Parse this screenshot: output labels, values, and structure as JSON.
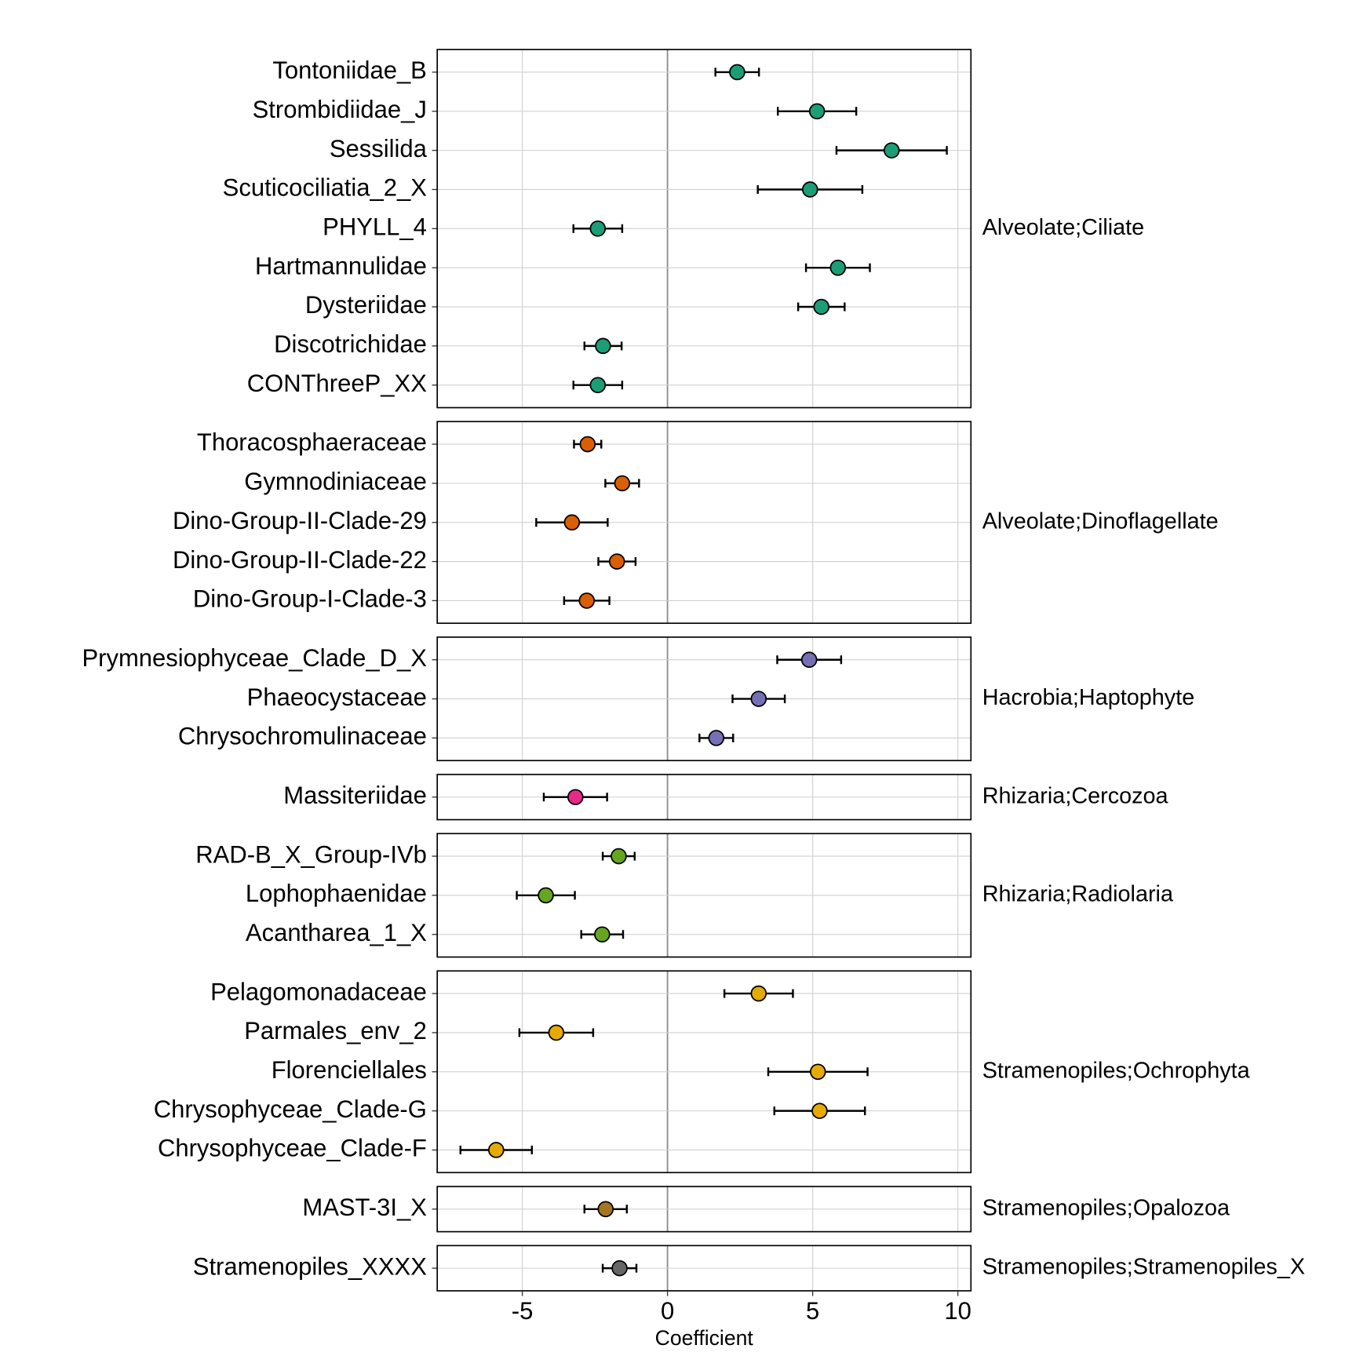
{
  "chart_data": {
    "type": "dot-errorbar",
    "x_label": "Coefficient",
    "xlim": [
      -7.93,
      10.45
    ],
    "xticks": [
      -5,
      0,
      5,
      10
    ],
    "grid": true,
    "panels": [
      {
        "name": "Alveolate;Ciliate",
        "color": "#1b9e77",
        "categories": [
          "Tontoniidae_B",
          "Strombidiidae_J",
          "Sessilida",
          "Scuticociliatia_2_X",
          "PHYLL_4",
          "Hartmannulidae",
          "Dysteriidae",
          "Discotrichidae",
          "CONThreeP_XX"
        ],
        "values": [
          2.4,
          5.15,
          7.72,
          4.91,
          -2.4,
          5.87,
          5.3,
          -2.22,
          -2.4
        ],
        "errors": [
          0.75,
          1.35,
          1.9,
          1.8,
          0.84,
          1.1,
          0.8,
          0.64,
          0.84
        ]
      },
      {
        "name": "Alveolate;Dinoflagellate",
        "color": "#d95f02",
        "categories": [
          "Thoracosphaeraceae",
          "Gymnodiniaceae",
          "Dino-Group-II-Clade-29",
          "Dino-Group-II-Clade-22",
          "Dino-Group-I-Clade-3"
        ],
        "values": [
          -2.75,
          -1.56,
          -3.29,
          -1.74,
          -2.78
        ],
        "errors": [
          0.47,
          0.58,
          1.23,
          0.64,
          0.78
        ]
      },
      {
        "name": "Hacrobia;Haptophyte",
        "color": "#7570b3",
        "categories": [
          "Prymnesiophyceae_Clade_D_X",
          "Phaeocystaceae",
          "Chrysochromulinaceae"
        ],
        "values": [
          4.88,
          3.14,
          1.68
        ],
        "errors": [
          1.1,
          0.9,
          0.58
        ]
      },
      {
        "name": "Rhizaria;Cercozoa",
        "color": "#e7298a",
        "categories": [
          "Massiteriidae"
        ],
        "values": [
          -3.17
        ],
        "errors": [
          1.09
        ]
      },
      {
        "name": "Rhizaria;Radiolaria",
        "color": "#66a61e",
        "categories": [
          "RAD-B_X_Group-IVb",
          "Lophophaenidae",
          "Acantharea_1_X"
        ],
        "values": [
          -1.68,
          -4.19,
          -2.25
        ],
        "errors": [
          0.55,
          1.0,
          0.72
        ]
      },
      {
        "name": "Stramenopiles;Ochrophyta",
        "color": "#e6ab02",
        "categories": [
          "Pelagomonadaceae",
          "Parmales_env_2",
          "Florenciellales",
          "Chrysophyceae_Clade-G",
          "Chrysophyceae_Clade-F"
        ],
        "values": [
          3.14,
          -3.83,
          5.18,
          5.24,
          -5.9
        ],
        "errors": [
          1.18,
          1.27,
          1.71,
          1.56,
          1.23
        ]
      },
      {
        "name": "Stramenopiles;Opalozoa",
        "color": "#a6761d",
        "categories": [
          "MAST-3I_X"
        ],
        "values": [
          -2.13
        ],
        "errors": [
          0.73
        ]
      },
      {
        "name": "Stramenopiles;Stramenopiles_X",
        "color": "#666666",
        "categories": [
          "Stramenopiles_XXXX"
        ],
        "values": [
          -1.65
        ],
        "errors": [
          0.58
        ]
      }
    ]
  }
}
